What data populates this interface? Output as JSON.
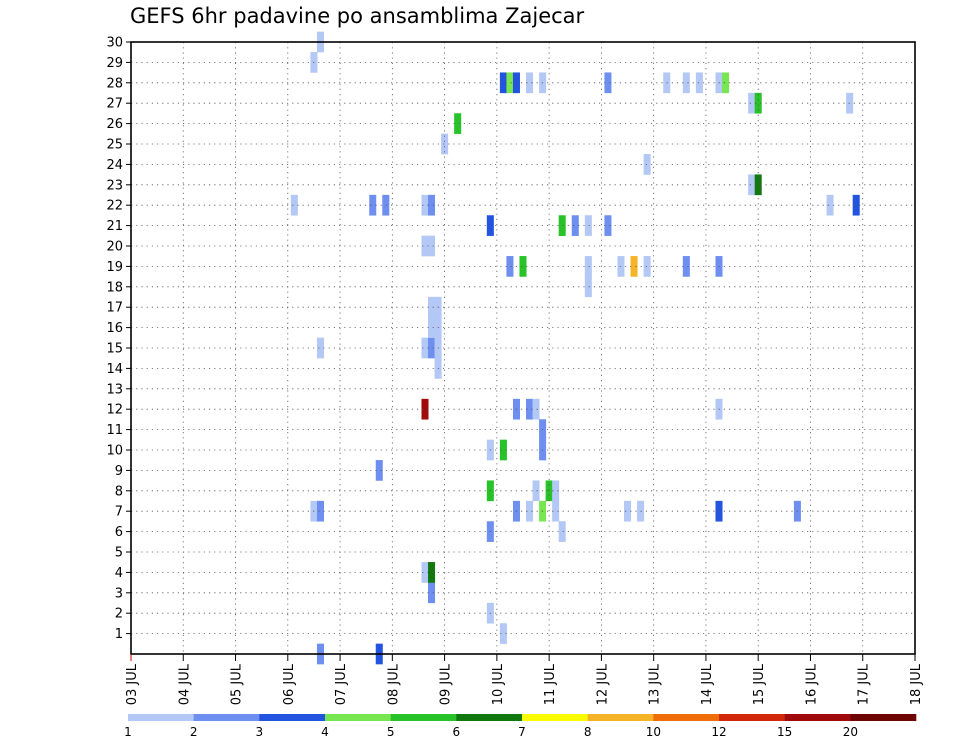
{
  "chart_data": {
    "type": "heatmap",
    "title": "GEFS 6hr padavine po ansamblima Zajecar",
    "x_unit": "6-hour steps starting 03 JUL 00Z",
    "x_ticks": [
      "03 JUL",
      "04 JUL",
      "05 JUL",
      "06 JUL",
      "07 JUL",
      "08 JUL",
      "09 JUL",
      "10 JUL",
      "11 JUL",
      "12 JUL",
      "13 JUL",
      "14 JUL",
      "15 JUL",
      "16 JUL",
      "17 JUL",
      "18 JUL"
    ],
    "y_ticks": [
      "1",
      "2",
      "3",
      "4",
      "5",
      "6",
      "7",
      "8",
      "9",
      "10",
      "11",
      "12",
      "13",
      "14",
      "15",
      "16",
      "17",
      "18",
      "19",
      "20",
      "21",
      "22",
      "23",
      "24",
      "25",
      "26",
      "27",
      "28",
      "29",
      "30"
    ],
    "xlim": [
      0,
      60
    ],
    "ylim": [
      0,
      30
    ],
    "grid": true,
    "colorbar": {
      "position": "bottom",
      "labels": [
        "1",
        "2",
        "3",
        "4",
        "5",
        "6",
        "7",
        "8",
        "10",
        "12",
        "15",
        "20"
      ],
      "colors": [
        "#b4c8f5",
        "#6e8ff0",
        "#2354e0",
        "#78e650",
        "#28c328",
        "#10780f",
        "#fafa00",
        "#f5b428",
        "#f06e0a",
        "#d2280a",
        "#a00a0a",
        "#6e0505"
      ]
    },
    "cells": [
      [
        14.5,
        0,
        2
      ],
      [
        19,
        0,
        3
      ],
      [
        28.5,
        1,
        1
      ],
      [
        27.5,
        2,
        1
      ],
      [
        23,
        3,
        2
      ],
      [
        22.5,
        4,
        1
      ],
      [
        23,
        4,
        6
      ],
      [
        27.5,
        6,
        2
      ],
      [
        33,
        6,
        1
      ],
      [
        38,
        7,
        1
      ],
      [
        39,
        7,
        1
      ],
      [
        45,
        7,
        3
      ],
      [
        51,
        7,
        2
      ],
      [
        14,
        7,
        1
      ],
      [
        14.5,
        7,
        2
      ],
      [
        29.5,
        7,
        2
      ],
      [
        30.5,
        7,
        1
      ],
      [
        31.5,
        7,
        4
      ],
      [
        32.5,
        7,
        1
      ],
      [
        27.5,
        8,
        5
      ],
      [
        31,
        8,
        1
      ],
      [
        32,
        8,
        5
      ],
      [
        32.5,
        8,
        1
      ],
      [
        19,
        9,
        2
      ],
      [
        27.5,
        10,
        1
      ],
      [
        28.5,
        10,
        5
      ],
      [
        31.5,
        10,
        2
      ],
      [
        31.5,
        11,
        2
      ],
      [
        22.5,
        12,
        11
      ],
      [
        29.5,
        12,
        2
      ],
      [
        30.5,
        12,
        2
      ],
      [
        31,
        12,
        1
      ],
      [
        45,
        12,
        1
      ],
      [
        23.5,
        14,
        1
      ],
      [
        14.5,
        15,
        1
      ],
      [
        22.5,
        15,
        1
      ],
      [
        23,
        15,
        2
      ],
      [
        23.5,
        15,
        1
      ],
      [
        23,
        16,
        1
      ],
      [
        23.5,
        16,
        1
      ],
      [
        23,
        17,
        1
      ],
      [
        23.5,
        17,
        1
      ],
      [
        35,
        18,
        1
      ],
      [
        35,
        19,
        1
      ],
      [
        29,
        19,
        2
      ],
      [
        30,
        19,
        5
      ],
      [
        37.5,
        19,
        1
      ],
      [
        38.5,
        19,
        8
      ],
      [
        39.5,
        19,
        1
      ],
      [
        42.5,
        19,
        2
      ],
      [
        45,
        19,
        2
      ],
      [
        22.5,
        20,
        1
      ],
      [
        23,
        20,
        1
      ],
      [
        27.5,
        21,
        3
      ],
      [
        33,
        21,
        5
      ],
      [
        34,
        21,
        2
      ],
      [
        35,
        21,
        1
      ],
      [
        36.5,
        21,
        2
      ],
      [
        12.5,
        22,
        1
      ],
      [
        18.5,
        22,
        2
      ],
      [
        19.5,
        22,
        2
      ],
      [
        22.5,
        22,
        1
      ],
      [
        23,
        22,
        2
      ],
      [
        53.5,
        22,
        1
      ],
      [
        55.5,
        22,
        3
      ],
      [
        47.5,
        23,
        1
      ],
      [
        48,
        23,
        6
      ],
      [
        39.5,
        24,
        1
      ],
      [
        24,
        25,
        1
      ],
      [
        25,
        26,
        5
      ],
      [
        47.5,
        27,
        1
      ],
      [
        48,
        27,
        5
      ],
      [
        55,
        27,
        1
      ],
      [
        28.5,
        28,
        3
      ],
      [
        29,
        28,
        4
      ],
      [
        29.5,
        28,
        3
      ],
      [
        30.5,
        28,
        1
      ],
      [
        31.5,
        28,
        1
      ],
      [
        36.5,
        28,
        2
      ],
      [
        41,
        28,
        1
      ],
      [
        42.5,
        28,
        1
      ],
      [
        43.5,
        28,
        1
      ],
      [
        45,
        28,
        1
      ],
      [
        45.5,
        28,
        4
      ],
      [
        14,
        29,
        1
      ],
      [
        14.5,
        30,
        1
      ]
    ]
  }
}
